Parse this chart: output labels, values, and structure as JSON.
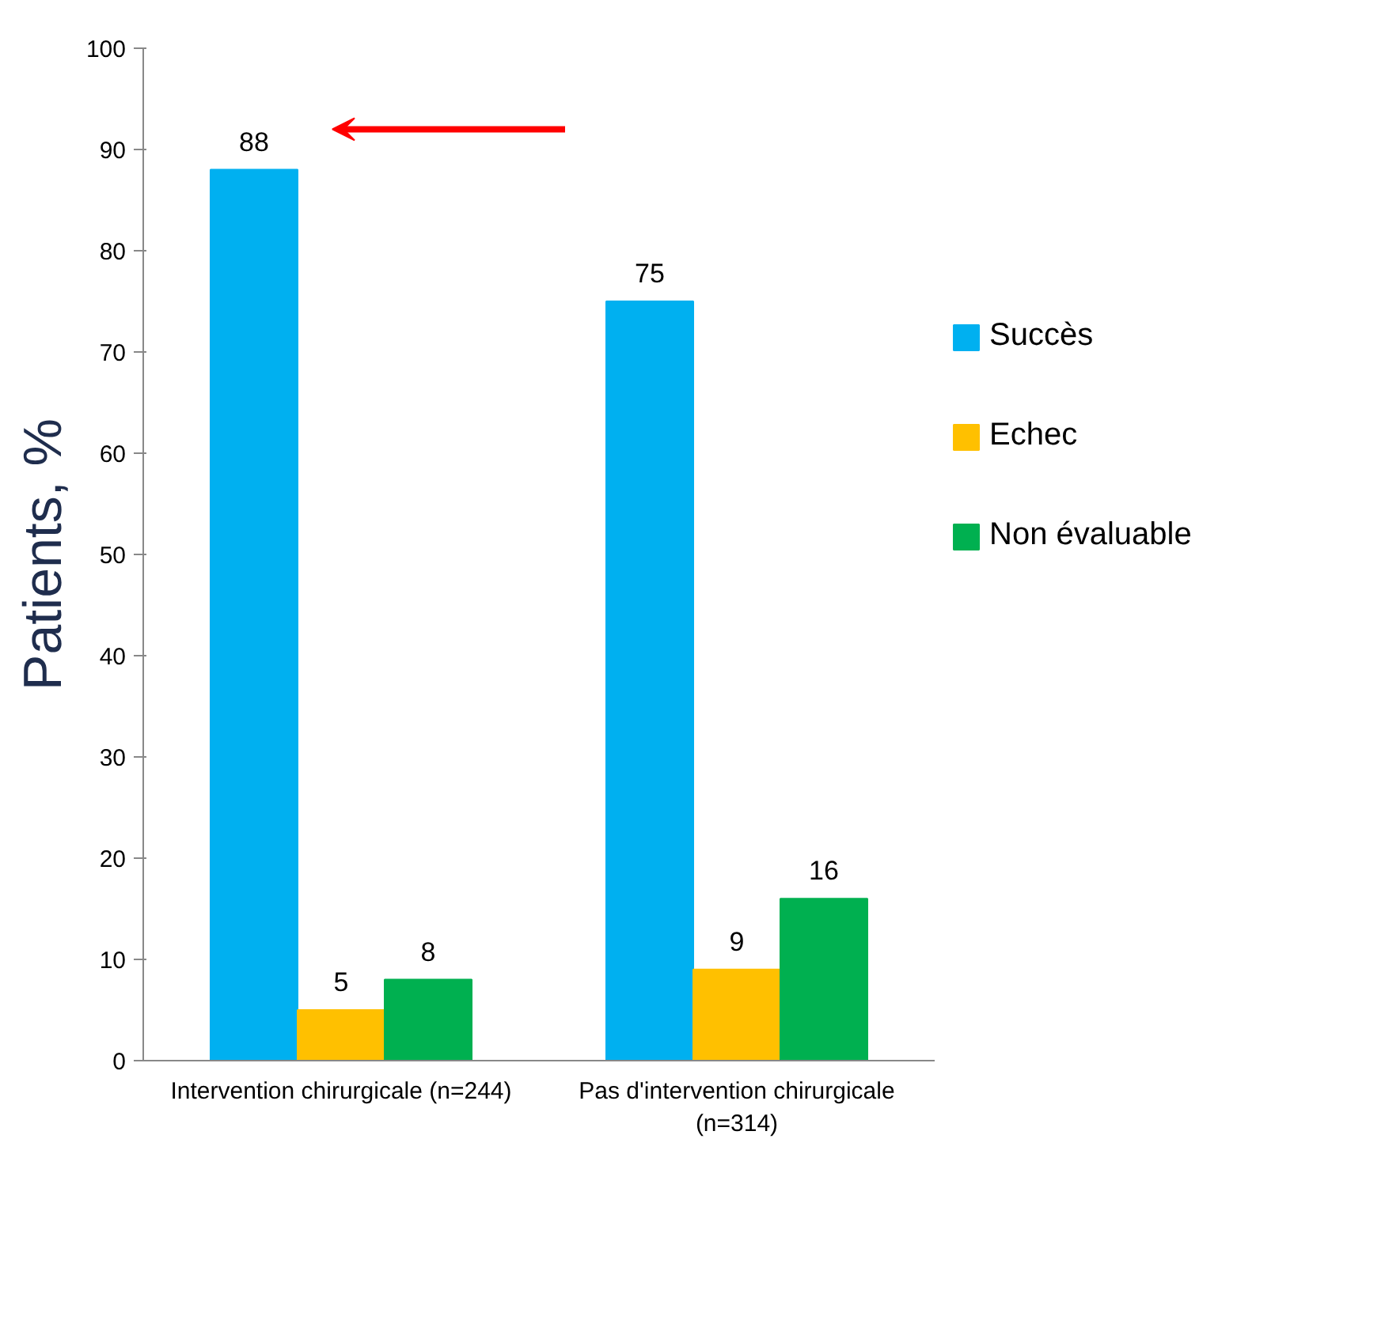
{
  "chart_data": {
    "type": "bar",
    "ylabel": "Patients, %",
    "categories": [
      "Intervention chirurgicale (n=244)",
      "Pas d'intervention chirurgicale (n=314)"
    ],
    "series": [
      {
        "name": "Succès",
        "color": "#00b0f0",
        "values": [
          88,
          75
        ]
      },
      {
        "name": "Echec",
        "color": "#ffc000",
        "values": [
          5,
          9
        ]
      },
      {
        "name": "Non évaluable",
        "color": "#00b050",
        "values": [
          8,
          16
        ]
      }
    ],
    "ylim": [
      0,
      100
    ],
    "yticks": [
      0,
      10,
      20,
      30,
      40,
      50,
      60,
      70,
      80,
      90,
      100
    ],
    "data_labels": true,
    "grid": false,
    "legend": "right"
  }
}
